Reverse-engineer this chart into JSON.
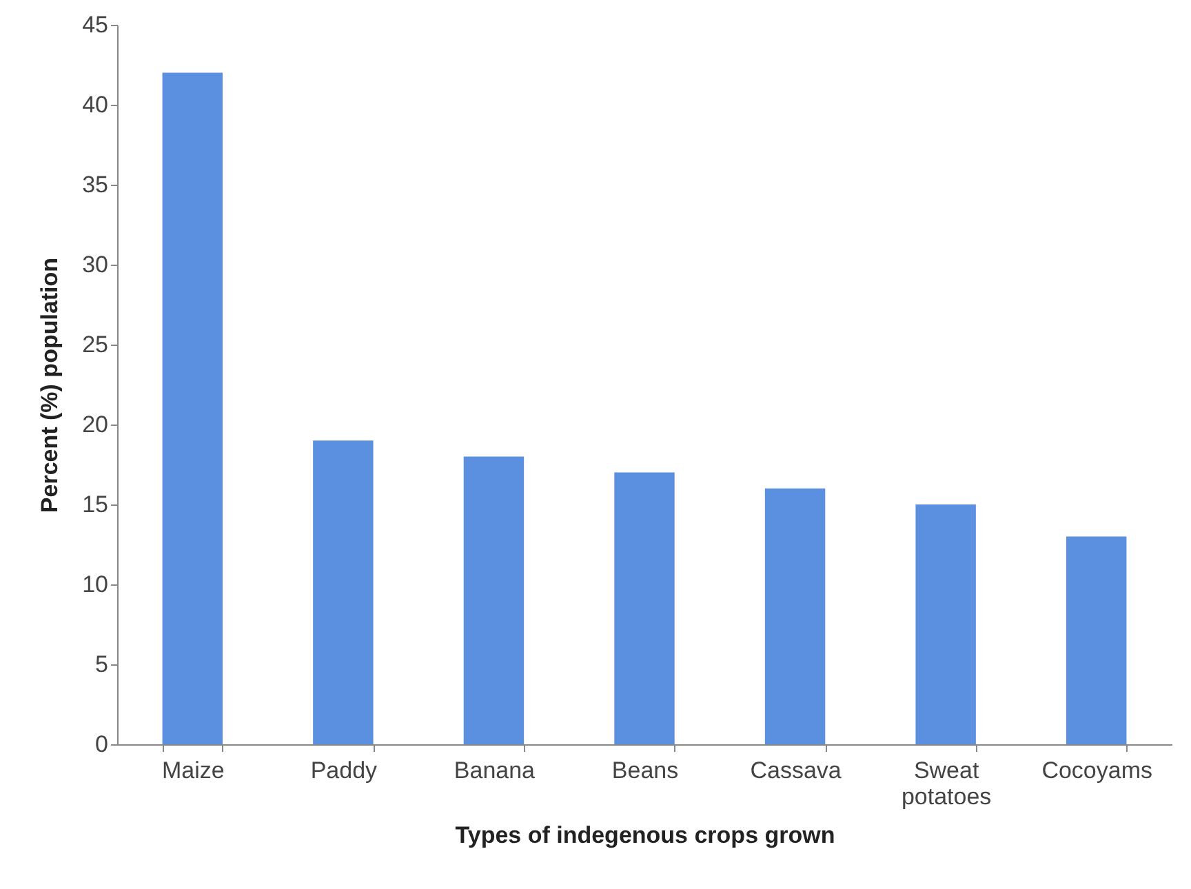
{
  "chart_data": {
    "type": "bar",
    "xlabel": "Types of indegenous crops grown",
    "ylabel": "Percent (%) population",
    "categories": [
      "Maize",
      "Paddy",
      "Banana",
      "Beans",
      "Cassava",
      "Sweat potatoes",
      "Cocoyams"
    ],
    "values": [
      42,
      19,
      18,
      17,
      16,
      15,
      13
    ],
    "color": "#5b8fe0",
    "ylim": [
      0,
      45
    ],
    "yticks": [
      0,
      5,
      10,
      15,
      20,
      25,
      30,
      35,
      40,
      45
    ],
    "grid": false
  }
}
